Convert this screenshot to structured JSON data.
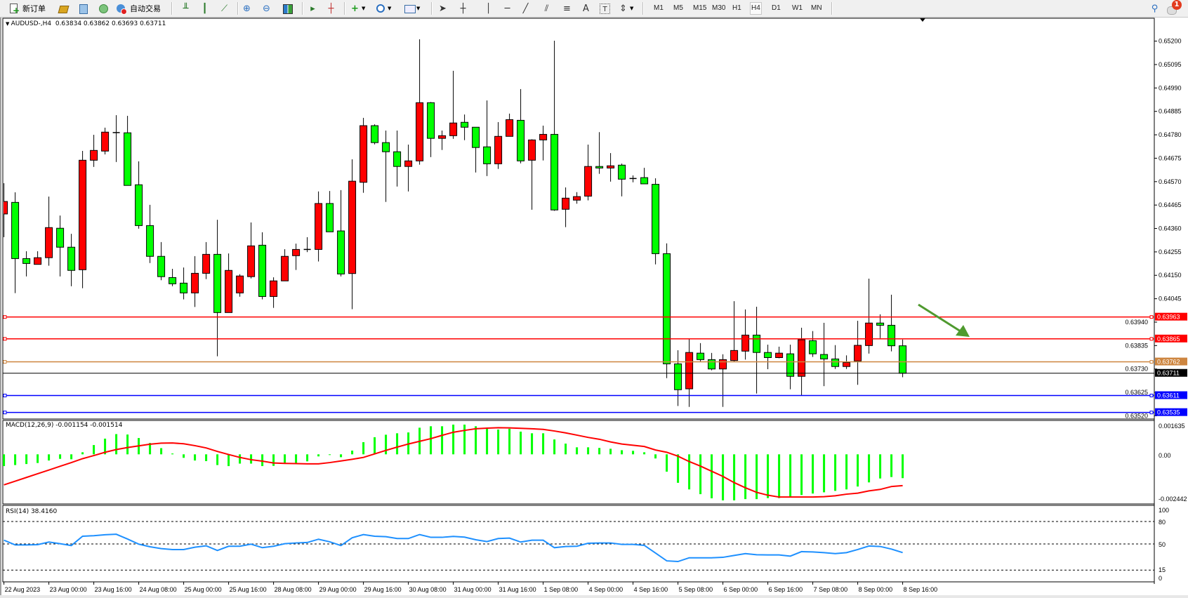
{
  "toolbar": {
    "new_order": "新订单",
    "auto_trading": "自动交易",
    "timeframes": [
      "M1",
      "M5",
      "M15",
      "M30",
      "H1",
      "H4",
      "D1",
      "W1",
      "MN"
    ],
    "active_timeframe": "H4",
    "notification_count": "1",
    "icons": [
      "new-order-icon",
      "market-watch-icon",
      "data-window-icon",
      "navigator-icon",
      "auto-trading-icon",
      "bar-chart-icon",
      "candlestick-icon",
      "line-chart-icon",
      "zoom-in-icon",
      "zoom-out-icon",
      "tile-windows-icon",
      "auto-scroll-icon",
      "chart-shift-icon",
      "indicators-icon",
      "periods-icon",
      "templates-icon",
      "cursor-icon",
      "crosshair-icon",
      "vertical-line-icon",
      "horizontal-line-icon",
      "trendline-icon",
      "equidistant-channel-icon",
      "fibonacci-icon",
      "text-icon",
      "text-label-icon",
      "arrows-icon",
      "search-icon",
      "notification-icon"
    ]
  },
  "chart": {
    "header": "AUDUSD-,H4  0.63834 0.63862 0.63693 0.63711",
    "price_axis_ticks": [
      "0.65200",
      "0.65095",
      "0.64990",
      "0.64885",
      "0.64780",
      "0.64675",
      "0.64570",
      "0.64465",
      "0.64360",
      "0.64255",
      "0.64150",
      "0.64045",
      "0.63940",
      "0.63835",
      "0.63730",
      "0.63625",
      "0.63520"
    ],
    "time_axis_labels": [
      "22 Aug 2023",
      "23 Aug 00:00",
      "23 Aug 16:00",
      "24 Aug 08:00",
      "25 Aug 00:00",
      "25 Aug 16:00",
      "28 Aug 08:00",
      "29 Aug 00:00",
      "29 Aug 16:00",
      "30 Aug 08:00",
      "31 Aug 00:00",
      "31 Aug 16:00",
      "1 Sep 08:00",
      "4 Sep 00:00",
      "4 Sep 16:00",
      "5 Sep 08:00",
      "6 Sep 00:00",
      "6 Sep 16:00",
      "7 Sep 08:00",
      "8 Sep 00:00",
      "8 Sep 16:00"
    ],
    "horizontal_lines": [
      {
        "label": "0.63963",
        "price": 0.63963,
        "color": "#ff0000"
      },
      {
        "label": "0.63865",
        "price": 0.63865,
        "color": "#ff0000"
      },
      {
        "label": "0.63762",
        "price": 0.63762,
        "color": "#cd853f"
      },
      {
        "label": "0.63611",
        "price": 0.63611,
        "color": "#0000ff"
      },
      {
        "label": "0.63535",
        "price": 0.63535,
        "color": "#0000ff"
      }
    ],
    "bid_line": {
      "label": "0.63711",
      "price": 0.63711,
      "color": "#000000"
    },
    "arrow_color": "#4f9a2f",
    "bull_color": "#ff0000",
    "bear_color": "#00ff00"
  },
  "macd": {
    "label": "MACD(12,26,9) -0.001154 -0.001514",
    "axis": [
      "0.001635",
      "0.00",
      "-0.002442"
    ],
    "histogram_color": "#00ff00",
    "signal_color": "#ff0000"
  },
  "rsi": {
    "label": "RSI(14) 38.4160",
    "axis": [
      "100",
      "80",
      "50",
      "15",
      "0"
    ],
    "levels": [
      80,
      50,
      15
    ],
    "line_color": "#1e90ff"
  },
  "chart_data": [
    {
      "type": "candlestick",
      "symbol": "AUDUSD-",
      "timeframe": "H4",
      "ohlc": [
        [
          0.64425,
          0.64563,
          0.64321,
          0.64481
        ],
        [
          0.64477,
          0.64522,
          0.6407,
          0.64225
        ],
        [
          0.64225,
          0.64258,
          0.64145,
          0.64203
        ],
        [
          0.64199,
          0.64258,
          0.64199,
          0.64229
        ],
        [
          0.64229,
          0.64503,
          0.64193,
          0.64364
        ],
        [
          0.64361,
          0.64418,
          0.64145,
          0.64276
        ],
        [
          0.64276,
          0.64336,
          0.64101,
          0.64172
        ],
        [
          0.64175,
          0.64708,
          0.64092,
          0.64666
        ],
        [
          0.64666,
          0.6478,
          0.64636,
          0.6471
        ],
        [
          0.64707,
          0.64812,
          0.64692,
          0.64792
        ],
        [
          0.6479,
          0.64868,
          0.64658,
          0.6479
        ],
        [
          0.64789,
          0.64865,
          0.64553,
          0.64553
        ],
        [
          0.64556,
          0.64661,
          0.64359,
          0.64373
        ],
        [
          0.64373,
          0.64466,
          0.64205,
          0.64235
        ],
        [
          0.64235,
          0.64299,
          0.64128,
          0.64144
        ],
        [
          0.6414,
          0.64179,
          0.64101,
          0.64112
        ],
        [
          0.64115,
          0.64185,
          0.64042,
          0.64071
        ],
        [
          0.64071,
          0.64236,
          0.64008,
          0.64159
        ],
        [
          0.64159,
          0.64299,
          0.64133,
          0.64244
        ],
        [
          0.64244,
          0.64399,
          0.63787,
          0.63983
        ],
        [
          0.63983,
          0.64248,
          0.63983,
          0.64172
        ],
        [
          0.64071,
          0.64155,
          0.64054,
          0.64147
        ],
        [
          0.64144,
          0.64387,
          0.64136,
          0.64282
        ],
        [
          0.64285,
          0.64343,
          0.64042,
          0.64055
        ],
        [
          0.64055,
          0.64141,
          0.64004,
          0.64125
        ],
        [
          0.64125,
          0.64267,
          0.64125,
          0.64235
        ],
        [
          0.64238,
          0.64292,
          0.64174,
          0.64266
        ],
        [
          0.64266,
          0.64321,
          0.64254,
          0.64266
        ],
        [
          0.64266,
          0.64526,
          0.64212,
          0.64472
        ],
        [
          0.64472,
          0.64528,
          0.64345,
          0.64345
        ],
        [
          0.64349,
          0.64532,
          0.64145,
          0.64156
        ],
        [
          0.64158,
          0.6467,
          0.63998,
          0.64572
        ],
        [
          0.64567,
          0.64856,
          0.6452,
          0.64821
        ],
        [
          0.64821,
          0.64827,
          0.64737,
          0.64745
        ],
        [
          0.64745,
          0.64799,
          0.64479,
          0.64704
        ],
        [
          0.64704,
          0.64799,
          0.64548,
          0.64638
        ],
        [
          0.64638,
          0.64736,
          0.64526,
          0.64663
        ],
        [
          0.64663,
          0.65208,
          0.64646,
          0.64924
        ],
        [
          0.64924,
          0.64927,
          0.6468,
          0.64764
        ],
        [
          0.64764,
          0.64799,
          0.64712,
          0.64776
        ],
        [
          0.64776,
          0.65067,
          0.64762,
          0.64833
        ],
        [
          0.64836,
          0.64871,
          0.64756,
          0.64814
        ],
        [
          0.64814,
          0.64814,
          0.64611,
          0.64723
        ],
        [
          0.64726,
          0.64934,
          0.64595,
          0.6465
        ],
        [
          0.6465,
          0.64837,
          0.64627,
          0.64773
        ],
        [
          0.64773,
          0.64875,
          0.64773,
          0.64848
        ],
        [
          0.64845,
          0.64985,
          0.64652,
          0.64663
        ],
        [
          0.64666,
          0.6476,
          0.64444,
          0.64757
        ],
        [
          0.64757,
          0.64821,
          0.64665,
          0.64782
        ],
        [
          0.64782,
          0.65202,
          0.64439,
          0.64443
        ],
        [
          0.64446,
          0.64544,
          0.64366,
          0.64496
        ],
        [
          0.64487,
          0.64523,
          0.64471,
          0.64503
        ],
        [
          0.64505,
          0.64736,
          0.64486,
          0.64638
        ],
        [
          0.64638,
          0.64792,
          0.64605,
          0.64631
        ],
        [
          0.64631,
          0.64698,
          0.6457,
          0.64641
        ],
        [
          0.64644,
          0.64651,
          0.64504,
          0.64581
        ],
        [
          0.64584,
          0.64598,
          0.64567,
          0.64584
        ],
        [
          0.64588,
          0.64632,
          0.6456,
          0.6456
        ],
        [
          0.64558,
          0.64585,
          0.64199,
          0.64247
        ],
        [
          0.64247,
          0.64293,
          0.63689,
          0.63753
        ],
        [
          0.63753,
          0.63814,
          0.63564,
          0.63637
        ],
        [
          0.63641,
          0.63863,
          0.6356,
          0.63804
        ],
        [
          0.63801,
          0.63846,
          0.63764,
          0.63772
        ],
        [
          0.63772,
          0.63802,
          0.63724,
          0.6373
        ],
        [
          0.6373,
          0.63796,
          0.6356,
          0.63772
        ],
        [
          0.63768,
          0.64034,
          0.63764,
          0.63813
        ],
        [
          0.6381,
          0.63997,
          0.63772,
          0.63882
        ],
        [
          0.63882,
          0.64009,
          0.6362,
          0.63804
        ],
        [
          0.63804,
          0.63839,
          0.63729,
          0.63781
        ],
        [
          0.63781,
          0.6383,
          0.63778,
          0.63801
        ],
        [
          0.63798,
          0.63839,
          0.63639,
          0.63697
        ],
        [
          0.63697,
          0.63915,
          0.63612,
          0.63861
        ],
        [
          0.63857,
          0.639,
          0.63784,
          0.63798
        ],
        [
          0.63795,
          0.63937,
          0.63653,
          0.63775
        ],
        [
          0.63775,
          0.63837,
          0.6373,
          0.63741
        ],
        [
          0.63741,
          0.63791,
          0.6373,
          0.63759
        ],
        [
          0.63766,
          0.63946,
          0.63659,
          0.63836
        ],
        [
          0.63835,
          0.64135,
          0.63799,
          0.63936
        ],
        [
          0.63936,
          0.63975,
          0.63868,
          0.63926
        ],
        [
          0.63926,
          0.64063,
          0.63809,
          0.63834
        ],
        [
          0.63834,
          0.63862,
          0.63693,
          0.63711
        ]
      ],
      "ylim": [
        0.6352,
        0.652
      ]
    },
    {
      "type": "bar",
      "name": "MACD(12,26,9)",
      "main": [
        -0.00057,
        -0.00052,
        -0.00047,
        -0.00042,
        -0.0003,
        -0.00022,
        -0.00024,
        0.0001,
        0.00045,
        0.00076,
        0.00098,
        0.00096,
        0.00079,
        0.00055,
        0.0003,
        4e-05,
        -0.00017,
        -0.0003,
        -0.00033,
        -0.00052,
        -0.00057,
        -0.00045,
        -0.00045,
        -0.00057,
        -0.00056,
        -0.00045,
        -0.00042,
        -0.00034,
        -0.0001,
        -3e-05,
        -0.00014,
        0.00018,
        0.00059,
        0.00083,
        0.00095,
        0.00102,
        0.00106,
        0.00129,
        0.00136,
        0.00136,
        0.00144,
        0.00144,
        0.00136,
        0.00124,
        0.0012,
        0.00124,
        0.0011,
        0.00102,
        0.00102,
        0.00072,
        0.00052,
        0.00034,
        0.00034,
        0.00031,
        0.00027,
        0.0002,
        0.00017,
        0.0001,
        -0.0002,
        -0.00084,
        -0.00138,
        -0.0017,
        -0.00193,
        -0.00213,
        -0.00223,
        -0.00223,
        -0.00217,
        -0.00217,
        -0.00212,
        -0.00212,
        -0.00207,
        -0.00197,
        -0.0019,
        -0.00184,
        -0.00177,
        -0.0017,
        -0.00156,
        -0.00136,
        -0.00117,
        -0.0011,
        -0.001154
      ],
      "signal": [
        -0.00148,
        -0.0013,
        -0.00112,
        -0.00094,
        -0.00076,
        -0.00058,
        -0.0004,
        -0.00021,
        -6e-05,
        0.0001,
        0.00023,
        0.00033,
        0.00041,
        0.00049,
        0.00054,
        0.00055,
        0.00051,
        0.00042,
        0.00031,
        0.00014,
        -1e-05,
        -0.00015,
        -0.00026,
        -0.00033,
        -0.00042,
        -0.00044,
        -0.00045,
        -0.00046,
        -0.00046,
        -0.0004,
        -0.00032,
        -0.00024,
        -0.00015,
        2e-05,
        0.00019,
        0.00035,
        0.0005,
        0.00063,
        0.00076,
        0.00092,
        0.00107,
        0.00116,
        0.00124,
        0.00127,
        0.00129,
        0.00128,
        0.00126,
        0.00124,
        0.00121,
        0.00113,
        0.00104,
        0.00093,
        0.00082,
        0.00073,
        0.0006,
        0.0005,
        0.00044,
        0.00038,
        0.00021,
        0.0001,
        -9e-05,
        -0.00035,
        -0.00057,
        -0.00082,
        -0.00107,
        -0.00137,
        -0.00162,
        -0.00184,
        -0.00198,
        -0.00207,
        -0.00207,
        -0.00207,
        -0.00207,
        -0.00205,
        -0.00201,
        -0.00193,
        -0.00188,
        -0.00177,
        -0.0017,
        -0.00156,
        -0.001514
      ],
      "ylim": [
        -0.002442,
        0.001635
      ]
    },
    {
      "type": "line",
      "name": "RSI(14)",
      "values": [
        55.0,
        48.7,
        48.7,
        49.0,
        52.5,
        50.3,
        47.8,
        60.3,
        61.0,
        62.2,
        62.9,
        56.6,
        49.7,
        46.2,
        43.7,
        42.5,
        42.5,
        45.6,
        47.5,
        41.2,
        46.9,
        46.9,
        49.7,
        45.0,
        46.9,
        50.3,
        51.3,
        51.9,
        56.3,
        52.8,
        47.8,
        58.2,
        62.5,
        60.3,
        59.7,
        57.2,
        57.2,
        62.5,
        58.8,
        58.8,
        60.0,
        59.1,
        55.6,
        53.1,
        57.2,
        57.8,
        52.5,
        55.0,
        55.0,
        45.0,
        46.6,
        46.9,
        50.9,
        51.3,
        51.3,
        49.4,
        49.4,
        48.1,
        37.8,
        27.4,
        26.5,
        31.5,
        31.5,
        31.5,
        32.1,
        34.6,
        37.1,
        35.6,
        35.3,
        35.3,
        33.7,
        39.7,
        39.3,
        38.4,
        37.1,
        38.4,
        42.5,
        47.2,
        46.6,
        43.1,
        38.416
      ],
      "ylim": [
        0,
        100
      ]
    }
  ]
}
